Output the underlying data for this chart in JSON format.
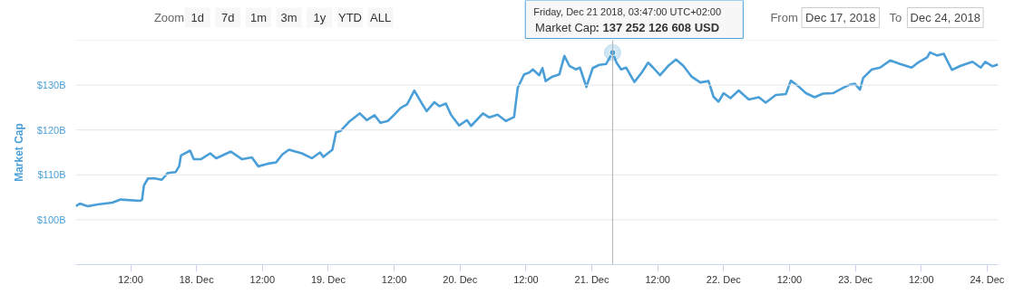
{
  "chart_data": {
    "type": "line",
    "ylabel": "Market Cap",
    "x": [
      "2018-12-17T02:00",
      "2018-12-17T02:45",
      "2018-12-17T04:10",
      "2018-12-17T06:00",
      "2018-12-17T08:40",
      "2018-12-17T10:10",
      "2018-12-17T13:45",
      "2018-12-17T14:05",
      "2018-12-17T14:25",
      "2018-12-17T15:10",
      "2018-12-17T16:25",
      "2018-12-17T17:40",
      "2018-12-17T18:45",
      "2018-12-17T20:10",
      "2018-12-17T20:50",
      "2018-12-17T21:10",
      "2018-12-17T22:50",
      "2018-12-17T23:30",
      "2018-12-18T00:50",
      "2018-12-18T02:30",
      "2018-12-18T03:35",
      "2018-12-18T06:15",
      "2018-12-18T08:15",
      "2018-12-18T10:05",
      "2018-12-18T11:15",
      "2018-12-18T13:00",
      "2018-12-18T14:30",
      "2018-12-18T15:40",
      "2018-12-18T16:50",
      "2018-12-18T19:10",
      "2018-12-18T21:00",
      "2018-12-18T22:30",
      "2018-12-18T23:05",
      "2018-12-19T00:45",
      "2018-12-19T01:25",
      "2018-12-19T02:15",
      "2018-12-19T03:45",
      "2018-12-19T05:45",
      "2018-12-19T07:00",
      "2018-12-19T08:25",
      "2018-12-19T09:30",
      "2018-12-19T10:50",
      "2018-12-19T12:00",
      "2018-12-19T13:10",
      "2018-12-19T14:20",
      "2018-12-19T14:45",
      "2018-12-19T15:40",
      "2018-12-19T17:00",
      "2018-12-19T17:55",
      "2018-12-19T19:20",
      "2018-12-19T20:15",
      "2018-12-19T21:25",
      "2018-12-19T22:20",
      "2018-12-19T23:50",
      "2018-12-20T01:15",
      "2018-12-20T02:00",
      "2018-12-20T04:10",
      "2018-12-20T05:20",
      "2018-12-20T06:50",
      "2018-12-20T08:20",
      "2018-12-20T09:50",
      "2018-12-20T10:30",
      "2018-12-20T11:40",
      "2018-12-20T12:35",
      "2018-12-20T13:15",
      "2018-12-20T14:25",
      "2018-12-20T15:00",
      "2018-12-20T15:35",
      "2018-12-20T16:50",
      "2018-12-20T18:05",
      "2018-12-20T19:00",
      "2018-12-20T19:55",
      "2018-12-20T21:05",
      "2018-12-20T21:50",
      "2018-12-20T23:00",
      "2018-12-21T00:10",
      "2018-12-21T01:20",
      "2018-12-21T02:35",
      "2018-12-21T03:47",
      "2018-12-21T04:30",
      "2018-12-21T05:20",
      "2018-12-21T06:15",
      "2018-12-21T07:45",
      "2018-12-21T09:05",
      "2018-12-21T10:15",
      "2018-12-21T11:10",
      "2018-12-21T12:25",
      "2018-12-21T13:55",
      "2018-12-21T15:20",
      "2018-12-21T16:40",
      "2018-12-21T18:10",
      "2018-12-21T19:45",
      "2018-12-21T21:15",
      "2018-12-21T22:10",
      "2018-12-21T23:05",
      "2018-12-22T00:00",
      "2018-12-22T01:15",
      "2018-12-22T02:45",
      "2018-12-22T04:35",
      "2018-12-22T06:25",
      "2018-12-22T07:40",
      "2018-12-22T09:30",
      "2018-12-22T11:20",
      "2018-12-22T12:15",
      "2018-12-22T13:45",
      "2018-12-22T15:00",
      "2018-12-22T16:35",
      "2018-12-22T18:05",
      "2018-12-22T19:55",
      "2018-12-22T21:45",
      "2018-12-22T23:00",
      "2018-12-22T23:55",
      "2018-12-23T00:50",
      "2018-12-23T01:25",
      "2018-12-23T03:00",
      "2018-12-23T04:30",
      "2018-12-23T06:20",
      "2018-12-23T08:10",
      "2018-12-23T10:15",
      "2018-12-23T11:30",
      "2018-12-23T13:05",
      "2018-12-23T13:35",
      "2018-12-23T14:55",
      "2018-12-23T16:05",
      "2018-12-23T17:35",
      "2018-12-23T19:10",
      "2018-12-23T21:20",
      "2018-12-23T22:50",
      "2018-12-23T23:40",
      "2018-12-24T01:00",
      "2018-12-24T02:00"
    ],
    "series": [
      {
        "name": "Market Cap",
        "color": "#4a9fd8",
        "values": [
          103.0,
          103.6,
          103.0,
          103.4,
          103.8,
          104.5,
          104.2,
          104.5,
          107.6,
          109.2,
          109.2,
          108.9,
          110.4,
          110.6,
          111.9,
          114.3,
          115.4,
          113.5,
          113.5,
          114.8,
          113.7,
          115.2,
          113.5,
          113.9,
          111.9,
          112.5,
          112.8,
          114.6,
          115.6,
          114.8,
          113.7,
          115.0,
          114.0,
          115.6,
          119.5,
          119.8,
          121.8,
          123.7,
          122.2,
          123.3,
          121.6,
          122.0,
          123.4,
          124.9,
          125.7,
          126.6,
          128.8,
          126.0,
          124.2,
          126.2,
          125.3,
          125.9,
          123.4,
          121.0,
          122.2,
          120.9,
          123.7,
          122.8,
          123.4,
          122.0,
          122.9,
          129.4,
          132.4,
          132.8,
          133.5,
          132.2,
          133.8,
          130.9,
          131.9,
          132.4,
          136.5,
          134.3,
          133.5,
          133.9,
          129.6,
          133.8,
          134.5,
          134.7,
          137.25,
          135.0,
          133.5,
          133.9,
          130.7,
          132.8,
          135.0,
          133.9,
          132.2,
          134.3,
          135.7,
          134.3,
          131.9,
          130.6,
          130.9,
          127.4,
          126.3,
          128.2,
          127.1,
          128.8,
          126.8,
          127.3,
          126.1,
          127.8,
          128.0,
          131.0,
          129.6,
          128.2,
          127.3,
          128.1,
          128.2,
          129.4,
          130.1,
          130.3,
          129.0,
          131.6,
          133.5,
          133.9,
          135.5,
          134.7,
          133.9,
          135.1,
          136.2,
          137.3,
          136.6,
          137.0,
          133.4,
          134.3,
          135.2,
          133.9,
          135.2,
          134.2,
          134.6
        ]
      }
    ],
    "xlim": [
      "2018-12-17T02:00",
      "2018-12-24T02:00"
    ],
    "xticks": [
      {
        "value": "2018-12-17T12:00",
        "label": "12:00"
      },
      {
        "value": "2018-12-18",
        "label": "18. Dec"
      },
      {
        "value": "2018-12-18T12:00",
        "label": "12:00"
      },
      {
        "value": "2018-12-19",
        "label": "19. Dec"
      },
      {
        "value": "2018-12-19T12:00",
        "label": "12:00"
      },
      {
        "value": "2018-12-20",
        "label": "20. Dec"
      },
      {
        "value": "2018-12-20T12:00",
        "label": "12:00"
      },
      {
        "value": "2018-12-21",
        "label": "21. Dec"
      },
      {
        "value": "2018-12-21T12:00",
        "label": "12:00"
      },
      {
        "value": "2018-12-22",
        "label": "22. Dec"
      },
      {
        "value": "2018-12-22T12:00",
        "label": "12:00"
      },
      {
        "value": "2018-12-23",
        "label": "23. Dec"
      },
      {
        "value": "2018-12-23T12:00",
        "label": "12:00"
      },
      {
        "value": "2018-12-24",
        "label": "24. Dec"
      }
    ],
    "ylim": [
      90,
      140
    ],
    "yticks": [
      {
        "value": 100,
        "label": "$100B"
      },
      {
        "value": 110,
        "label": "$110B"
      },
      {
        "value": 120,
        "label": "$120B"
      },
      {
        "value": 130,
        "label": "$130B"
      },
      {
        "value": 140,
        "label": null
      }
    ],
    "grid": "y",
    "ref_lines": [
      {
        "axis": "x",
        "value": "2018-12-21T03:47",
        "color": "#b0b0b0"
      }
    ],
    "annotations": [
      "Zoom",
      "1d",
      "7d",
      "1m",
      "3m",
      "1y",
      "YTD",
      "ALL",
      "From",
      "Dec 17, 2018",
      "To",
      "Dec 24, 2018",
      "Friday, Dec 21 2018, 03:47:00 UTC+02:00",
      ": 137 252 126 608 USD"
    ]
  }
}
